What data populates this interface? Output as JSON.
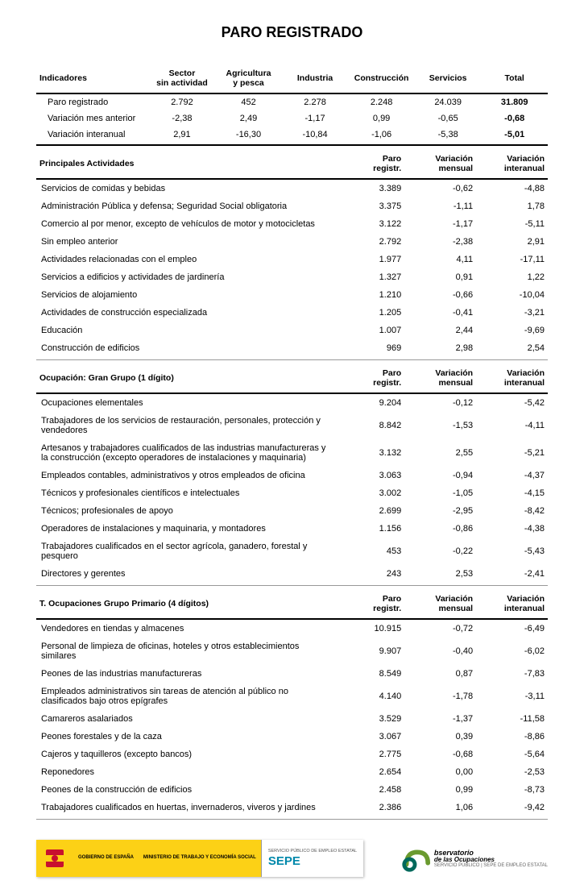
{
  "title": "PARO REGISTRADO",
  "indicadores": {
    "header": {
      "label": "Indicadores",
      "cols": [
        "Sector sin actividad",
        "Agricultura y pesca",
        "Industria",
        "Construcción",
        "Servicios",
        "Total"
      ]
    },
    "rows": [
      {
        "label": "Paro registrado",
        "vals": [
          "2.792",
          "452",
          "2.278",
          "2.248",
          "24.039",
          "31.809"
        ],
        "bold": true
      },
      {
        "label": "Variación mes anterior",
        "vals": [
          "-2,38",
          "2,49",
          "-1,17",
          "0,99",
          "-0,65",
          "-0,68"
        ],
        "bold": true
      },
      {
        "label": "Variación interanual",
        "vals": [
          "2,91",
          "-16,30",
          "-10,84",
          "-1,06",
          "-5,38",
          "-5,01"
        ],
        "bold": true
      }
    ]
  },
  "sections": [
    {
      "header": {
        "label": "Principales Actividades",
        "cols": [
          "Paro registr.",
          "Variación mensual",
          "Variación interanual"
        ]
      },
      "rows": [
        {
          "label": "Servicios de comidas y bebidas",
          "vals": [
            "3.389",
            "-0,62",
            "-4,88"
          ]
        },
        {
          "label": "Administración Pública y defensa; Seguridad Social obligatoria",
          "vals": [
            "3.375",
            "-1,11",
            "1,78"
          ]
        },
        {
          "label": "Comercio al por menor, excepto de vehículos de motor y motocicletas",
          "vals": [
            "3.122",
            "-1,17",
            "-5,11"
          ]
        },
        {
          "label": "Sin empleo anterior",
          "vals": [
            "2.792",
            "-2,38",
            "2,91"
          ]
        },
        {
          "label": "Actividades relacionadas con el empleo",
          "vals": [
            "1.977",
            "4,11",
            "-17,11"
          ]
        },
        {
          "label": "Servicios a edificios y actividades de jardinería",
          "vals": [
            "1.327",
            "0,91",
            "1,22"
          ]
        },
        {
          "label": "Servicios de alojamiento",
          "vals": [
            "1.210",
            "-0,66",
            "-10,04"
          ]
        },
        {
          "label": "Actividades de construcción especializada",
          "vals": [
            "1.205",
            "-0,41",
            "-3,21"
          ]
        },
        {
          "label": "Educación",
          "vals": [
            "1.007",
            "2,44",
            "-9,69"
          ]
        },
        {
          "label": "Construcción de edificios",
          "vals": [
            "969",
            "2,98",
            "2,54"
          ]
        }
      ]
    },
    {
      "header": {
        "label": "Ocupación: Gran Grupo (1 dígito)",
        "cols": [
          "Paro registr.",
          "Variación mensual",
          "Variación interanual"
        ]
      },
      "rows": [
        {
          "label": "Ocupaciones elementales",
          "vals": [
            "9.204",
            "-0,12",
            "-5,42"
          ]
        },
        {
          "label": "Trabajadores de los servicios de restauración, personales, protección y vendedores",
          "vals": [
            "8.842",
            "-1,53",
            "-4,11"
          ]
        },
        {
          "label": "Artesanos y trabajadores cualificados de las industrias manufactureras y la construcción (excepto operadores de instalaciones y maquinaria)",
          "vals": [
            "3.132",
            "2,55",
            "-5,21"
          ]
        },
        {
          "label": "Empleados contables, administrativos y otros empleados de oficina",
          "vals": [
            "3.063",
            "-0,94",
            "-4,37"
          ]
        },
        {
          "label": "Técnicos y profesionales científicos e intelectuales",
          "vals": [
            "3.002",
            "-1,05",
            "-4,15"
          ]
        },
        {
          "label": "Técnicos; profesionales de apoyo",
          "vals": [
            "2.699",
            "-2,95",
            "-8,42"
          ]
        },
        {
          "label": "Operadores de instalaciones y maquinaria, y montadores",
          "vals": [
            "1.156",
            "-0,86",
            "-4,38"
          ]
        },
        {
          "label": "Trabajadores cualificados en el sector agrícola, ganadero, forestal y pesquero",
          "vals": [
            "453",
            "-0,22",
            "-5,43"
          ]
        },
        {
          "label": "Directores y gerentes",
          "vals": [
            "243",
            "2,53",
            "-2,41"
          ]
        }
      ]
    },
    {
      "header": {
        "label": "T. Ocupaciones Grupo Primario (4 dígitos)",
        "cols": [
          "Paro registr.",
          "Variación mensual",
          "Variación interanual"
        ]
      },
      "rows": [
        {
          "label": "Vendedores en tiendas y almacenes",
          "vals": [
            "10.915",
            "-0,72",
            "-6,49"
          ]
        },
        {
          "label": "Personal de limpieza de oficinas, hoteles y otros establecimientos similares",
          "vals": [
            "9.907",
            "-0,40",
            "-6,02"
          ]
        },
        {
          "label": "Peones de las industrias manufactureras",
          "vals": [
            "8.549",
            "0,87",
            "-7,83"
          ]
        },
        {
          "label": "Empleados administrativos sin tareas de atención al público no clasificados bajo otros epígrafes",
          "vals": [
            "4.140",
            "-1,78",
            "-3,11"
          ]
        },
        {
          "label": "Camareros asalariados",
          "vals": [
            "3.529",
            "-1,37",
            "-11,58"
          ]
        },
        {
          "label": "Peones forestales y de la caza",
          "vals": [
            "3.067",
            "0,39",
            "-8,86"
          ]
        },
        {
          "label": "Cajeros y taquilleros (excepto bancos)",
          "vals": [
            "2.775",
            "-0,68",
            "-5,64"
          ]
        },
        {
          "label": "Reponedores",
          "vals": [
            "2.654",
            "0,00",
            "-2,53"
          ]
        },
        {
          "label": "Peones de la construcción de edificios",
          "vals": [
            "2.458",
            "0,99",
            "-8,73"
          ]
        },
        {
          "label": "Trabajadores cualificados en huertas, invernaderos, viveros y jardines",
          "vals": [
            "2.386",
            "1,06",
            "-9,42"
          ]
        }
      ]
    }
  ],
  "footer": {
    "gov1": "GOBIERNO\nDE ESPAÑA",
    "gov2": "MINISTERIO\nDE TRABAJO\nY ECONOMÍA SOCIAL",
    "sepe_small": "SERVICIO PÚBLICO\nDE EMPLEO ESTATAL",
    "sepe": "SEPE",
    "obs": "bservatorio",
    "obs2": "de las\nOcupaciones",
    "obs3": "SERVICIO PÚBLICO | SEPE\nDE EMPLEO ESTATAL"
  }
}
